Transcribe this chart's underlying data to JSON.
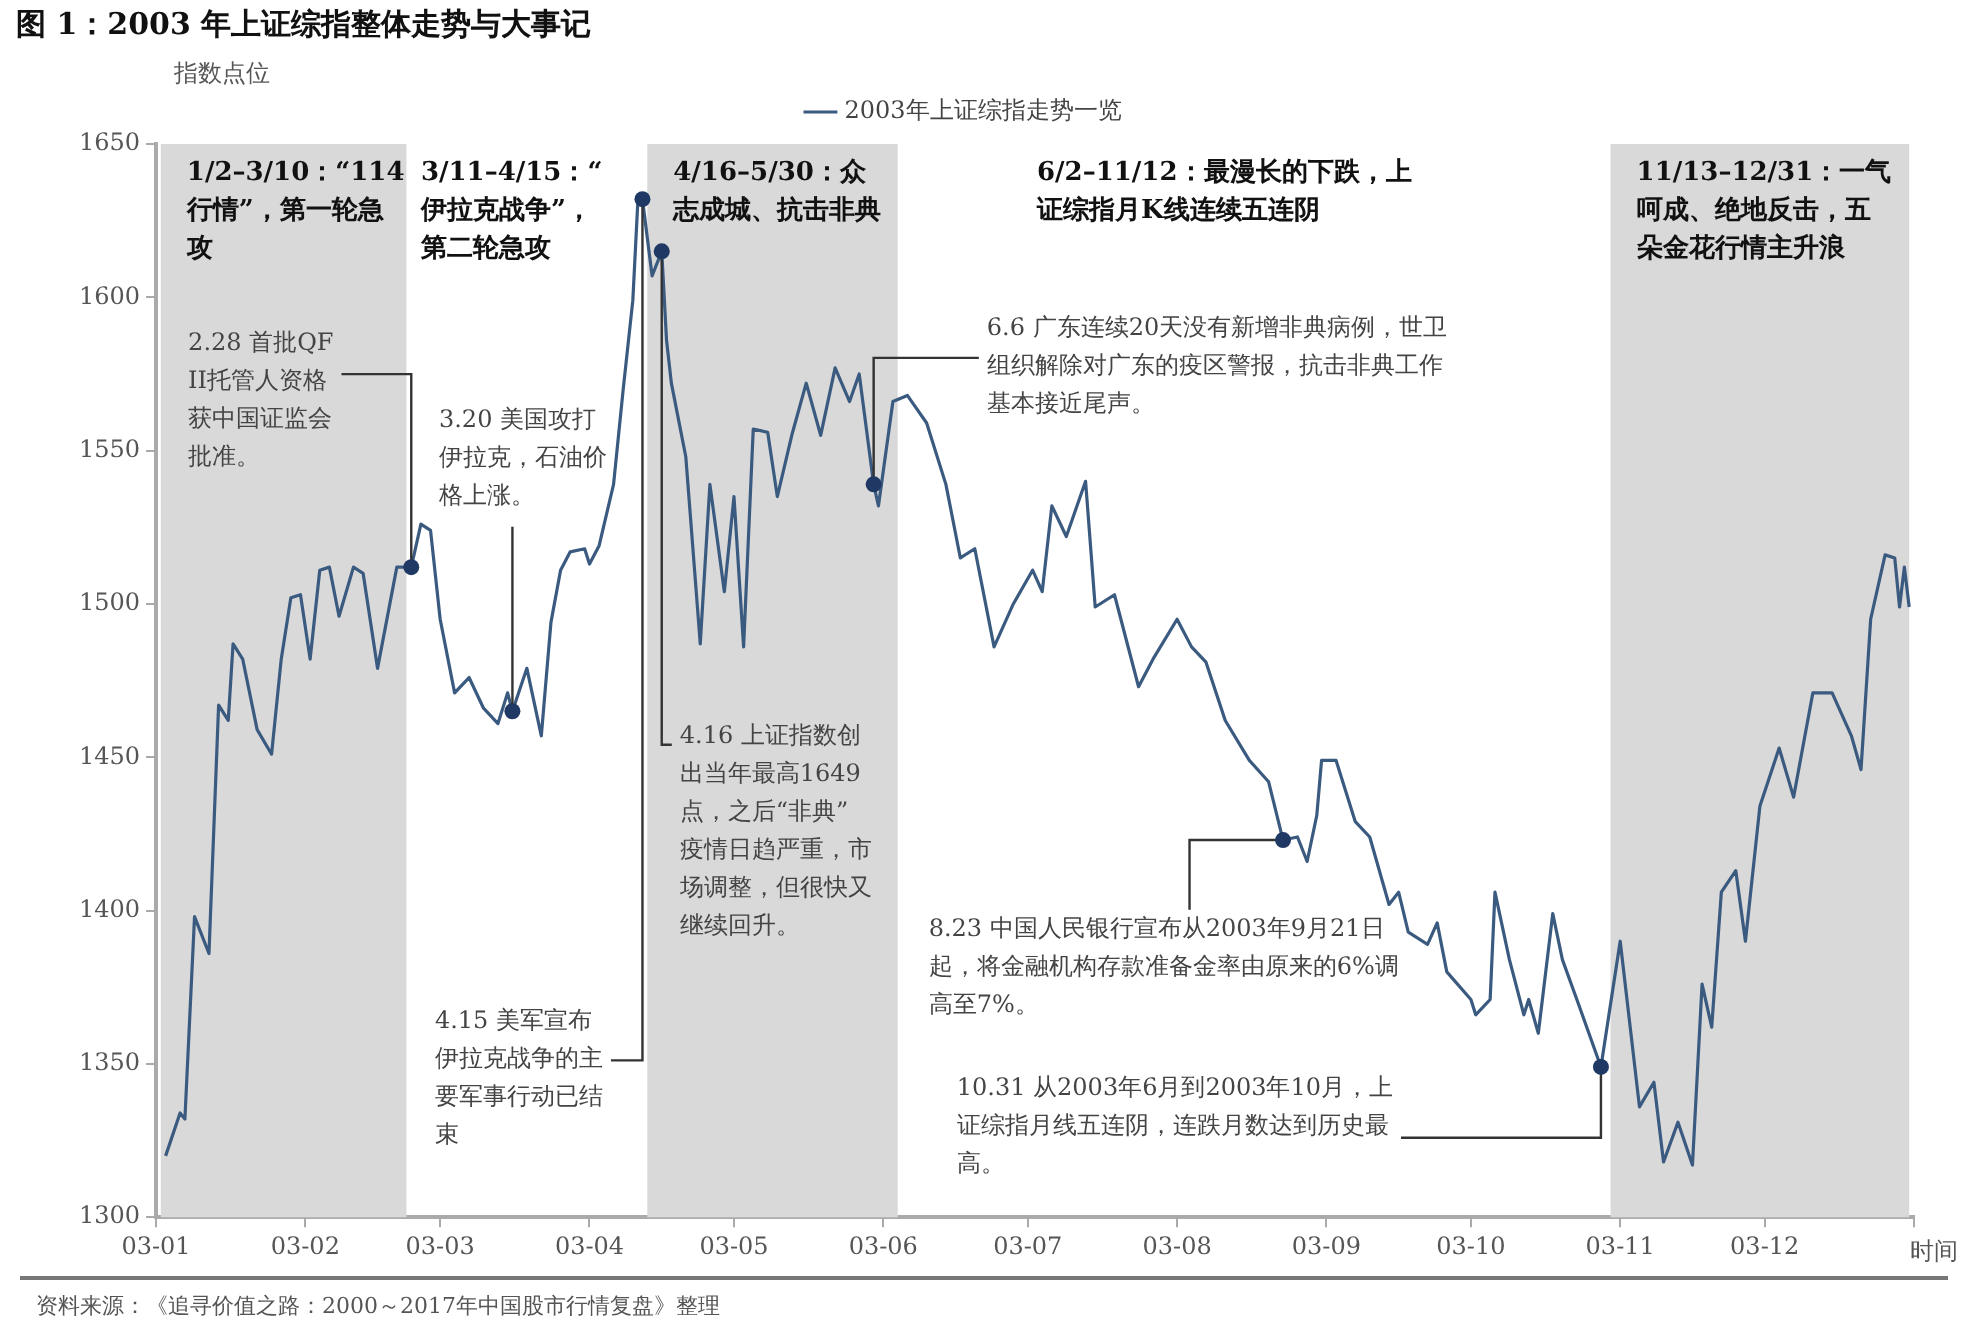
{
  "chart_data": {
    "type": "line",
    "title": "图 1：2003 年上证综指整体走势与大事记",
    "ylabel": "指数点位",
    "xlabel": "时间",
    "x": [
      "2003-01-03",
      "2003-01-06",
      "2003-01-07",
      "2003-01-09",
      "2003-01-12",
      "2003-01-14",
      "2003-01-16",
      "2003-01-17",
      "2003-01-19",
      "2003-01-22",
      "2003-01-25",
      "2003-01-27",
      "2003-01-29",
      "2003-01-31",
      "2003-02-02",
      "2003-02-04",
      "2003-02-06",
      "2003-02-08",
      "2003-02-11",
      "2003-02-13",
      "2003-02-16",
      "2003-02-20",
      "2003-02-23",
      "2003-02-25",
      "2003-02-27",
      "2003-03-01",
      "2003-03-04",
      "2003-03-07",
      "2003-03-10",
      "2003-03-13",
      "2003-03-15",
      "2003-03-16",
      "2003-03-19",
      "2003-03-22",
      "2003-03-24",
      "2003-03-26",
      "2003-03-28",
      "2003-03-31",
      "2003-04-01",
      "2003-04-03",
      "2003-04-06",
      "2003-04-08",
      "2003-04-10",
      "2003-04-11",
      "2003-04-12",
      "2003-04-14",
      "2003-04-16",
      "2003-04-17",
      "2003-04-18",
      "2003-04-21",
      "2003-04-24",
      "2003-04-26",
      "2003-04-29",
      "2003-05-01",
      "2003-05-03",
      "2003-05-05",
      "2003-05-08",
      "2003-05-10",
      "2003-05-13",
      "2003-05-16",
      "2003-05-19",
      "2003-05-22",
      "2003-05-25",
      "2003-05-27",
      "2003-05-30",
      "2003-05-31",
      "2003-06-03",
      "2003-06-06",
      "2003-06-10",
      "2003-06-14",
      "2003-06-17",
      "2003-06-20",
      "2003-06-24",
      "2003-06-28",
      "2003-07-02",
      "2003-07-04",
      "2003-07-06",
      "2003-07-09",
      "2003-07-13",
      "2003-07-15",
      "2003-07-19",
      "2003-07-24",
      "2003-07-27",
      "2003-08-01",
      "2003-08-04",
      "2003-08-07",
      "2003-08-11",
      "2003-08-16",
      "2003-08-20",
      "2003-08-23",
      "2003-08-26",
      "2003-08-28",
      "2003-08-30",
      "2003-08-31",
      "2003-09-03",
      "2003-09-07",
      "2003-09-10",
      "2003-09-14",
      "2003-09-16",
      "2003-09-18",
      "2003-09-22",
      "2003-09-24",
      "2003-09-26",
      "2003-10-01",
      "2003-10-02",
      "2003-10-05",
      "2003-10-06",
      "2003-10-09",
      "2003-10-12",
      "2003-10-13",
      "2003-10-15",
      "2003-10-18",
      "2003-10-20",
      "2003-10-23",
      "2003-10-28",
      "2003-11-01",
      "2003-11-05",
      "2003-11-08",
      "2003-11-10",
      "2003-11-13",
      "2003-11-16",
      "2003-11-18",
      "2003-11-20",
      "2003-11-22",
      "2003-11-25",
      "2003-11-27",
      "2003-11-30",
      "2003-12-04",
      "2003-12-07",
      "2003-12-11",
      "2003-12-15",
      "2003-12-19",
      "2003-12-21",
      "2003-12-23",
      "2003-12-26",
      "2003-12-28",
      "2003-12-29",
      "2003-12-30",
      "2003-12-31"
    ],
    "series": [
      {
        "name": "2003年上证综指走势一览",
        "color": "#3b5a80",
        "values": [
          1320,
          1334,
          1332,
          1398,
          1386,
          1467,
          1462,
          1487,
          1482,
          1459,
          1451,
          1482,
          1502,
          1503,
          1482,
          1511,
          1512,
          1496,
          1512,
          1510,
          1479,
          1512,
          1512,
          1526,
          1524,
          1495,
          1471,
          1476,
          1466,
          1461,
          1471,
          1465,
          1479,
          1457,
          1494,
          1511,
          1517,
          1518,
          1513,
          1519,
          1539,
          1570,
          1599,
          1630,
          1632,
          1607,
          1615,
          1586,
          1572,
          1548,
          1487,
          1539,
          1504,
          1535,
          1486,
          1557,
          1556,
          1535,
          1555,
          1572,
          1555,
          1577,
          1566,
          1575,
          1539,
          1532,
          1566,
          1568,
          1559,
          1539,
          1515,
          1518,
          1486,
          1500,
          1511,
          1504,
          1532,
          1522,
          1540,
          1499,
          1503,
          1473,
          1482,
          1495,
          1486,
          1481,
          1462,
          1449,
          1442,
          1423,
          1424,
          1416,
          1431,
          1449,
          1449,
          1429,
          1424,
          1402,
          1406,
          1393,
          1389,
          1396,
          1380,
          1371,
          1366,
          1371,
          1406,
          1384,
          1366,
          1371,
          1360,
          1399,
          1384,
          1371,
          1349,
          1390,
          1336,
          1344,
          1318,
          1331,
          1317,
          1376,
          1362,
          1406,
          1413,
          1390,
          1434,
          1453,
          1437,
          1471,
          1471,
          1457,
          1446,
          1495,
          1516,
          1515,
          1499,
          1512,
          1499
        ]
      }
    ],
    "xlim": [
      "2003-01-01",
      "2004-01-01"
    ],
    "xticks": [
      {
        "value": "2003-01-01",
        "label": "03-01"
      },
      {
        "value": "2003-02-01",
        "label": "03-02"
      },
      {
        "value": "2003-03-01",
        "label": "03-03"
      },
      {
        "value": "2003-04-01",
        "label": "03-04"
      },
      {
        "value": "2003-05-01",
        "label": "03-05"
      },
      {
        "value": "2003-06-01",
        "label": "03-06"
      },
      {
        "value": "2003-07-01",
        "label": "03-07"
      },
      {
        "value": "2003-08-01",
        "label": "03-08"
      },
      {
        "value": "2003-09-01",
        "label": "03-09"
      },
      {
        "value": "2003-10-01",
        "label": "03-10"
      },
      {
        "value": "2003-11-01",
        "label": "03-11"
      },
      {
        "value": "2003-12-01",
        "label": "03-12"
      },
      {
        "value": "2004-01-01",
        "label": null
      }
    ],
    "ylim": [
      1300,
      1650
    ],
    "yticks": [
      1300,
      1350,
      1400,
      1450,
      1500,
      1550,
      1600,
      1650
    ],
    "grid": false,
    "legend": "top",
    "marker": "none",
    "line_style": "solid",
    "bands": [
      {
        "axis": "x",
        "from": "2003-01-02",
        "to": "2003-02-22",
        "label": "1/2–3/10：“114行情”，第一轮急攻",
        "color": "#d9d9d9"
      },
      {
        "axis": "x",
        "from": "2003-04-13",
        "to": "2003-06-04",
        "label": "4/16–5/30：众志成城、抗击非典",
        "color": "#d9d9d9"
      },
      {
        "axis": "x",
        "from": "2003-10-30",
        "to": "2003-12-31",
        "label": "11/13–12/31：一气呵成、绝地反击，五朵金花行情主升浪",
        "color": "#d9d9d9"
      }
    ],
    "annotations": [
      "3/11–4/15：“伊拉克战争”，第二轮急攻",
      "6/2–11/12：最漫长的下跌，上证综指月K线连续五连阴",
      {
        "text": "2.28 首批QFII托管人资格获中国证监会批准。",
        "x": "2003-02-23",
        "y": 1512
      },
      {
        "text": "3.20 美国攻打伊拉克，石油价格上涨。",
        "x": "2003-03-16",
        "y": 1465
      },
      {
        "text": "4.15 美军宣布伊拉克战争的主要军事行动已结束",
        "x": "2003-04-12",
        "y": 1632
      },
      {
        "text": "4.16 上证指数创出当年最高1649点，之后“非典”疫情日趋严重，市场调整，但很快又继续回升。",
        "x": "2003-04-16",
        "y": 1615
      },
      {
        "text": "6.6 广东连续20天没有新增非典病例，世卫组织解除对广东的疫区警报，抗击非典工作基本接近尾声。",
        "x": "2003-05-30",
        "y": 1539
      },
      {
        "text": "8.23 中国人民银行宣布从2003年9月21日起，将金融机构存款准备金率由原来的6%调高至7%。",
        "x": "2003-08-23",
        "y": 1423
      },
      {
        "text": "10.31 从2003年6月到2003年10月，上证综指月线五连阴，连跌月数达到历史最高。",
        "x": "2003-10-28",
        "y": 1349
      },
      "资料来源：《追寻价值之路：2000～2017年中国股市行情复盘》整理"
    ]
  }
}
